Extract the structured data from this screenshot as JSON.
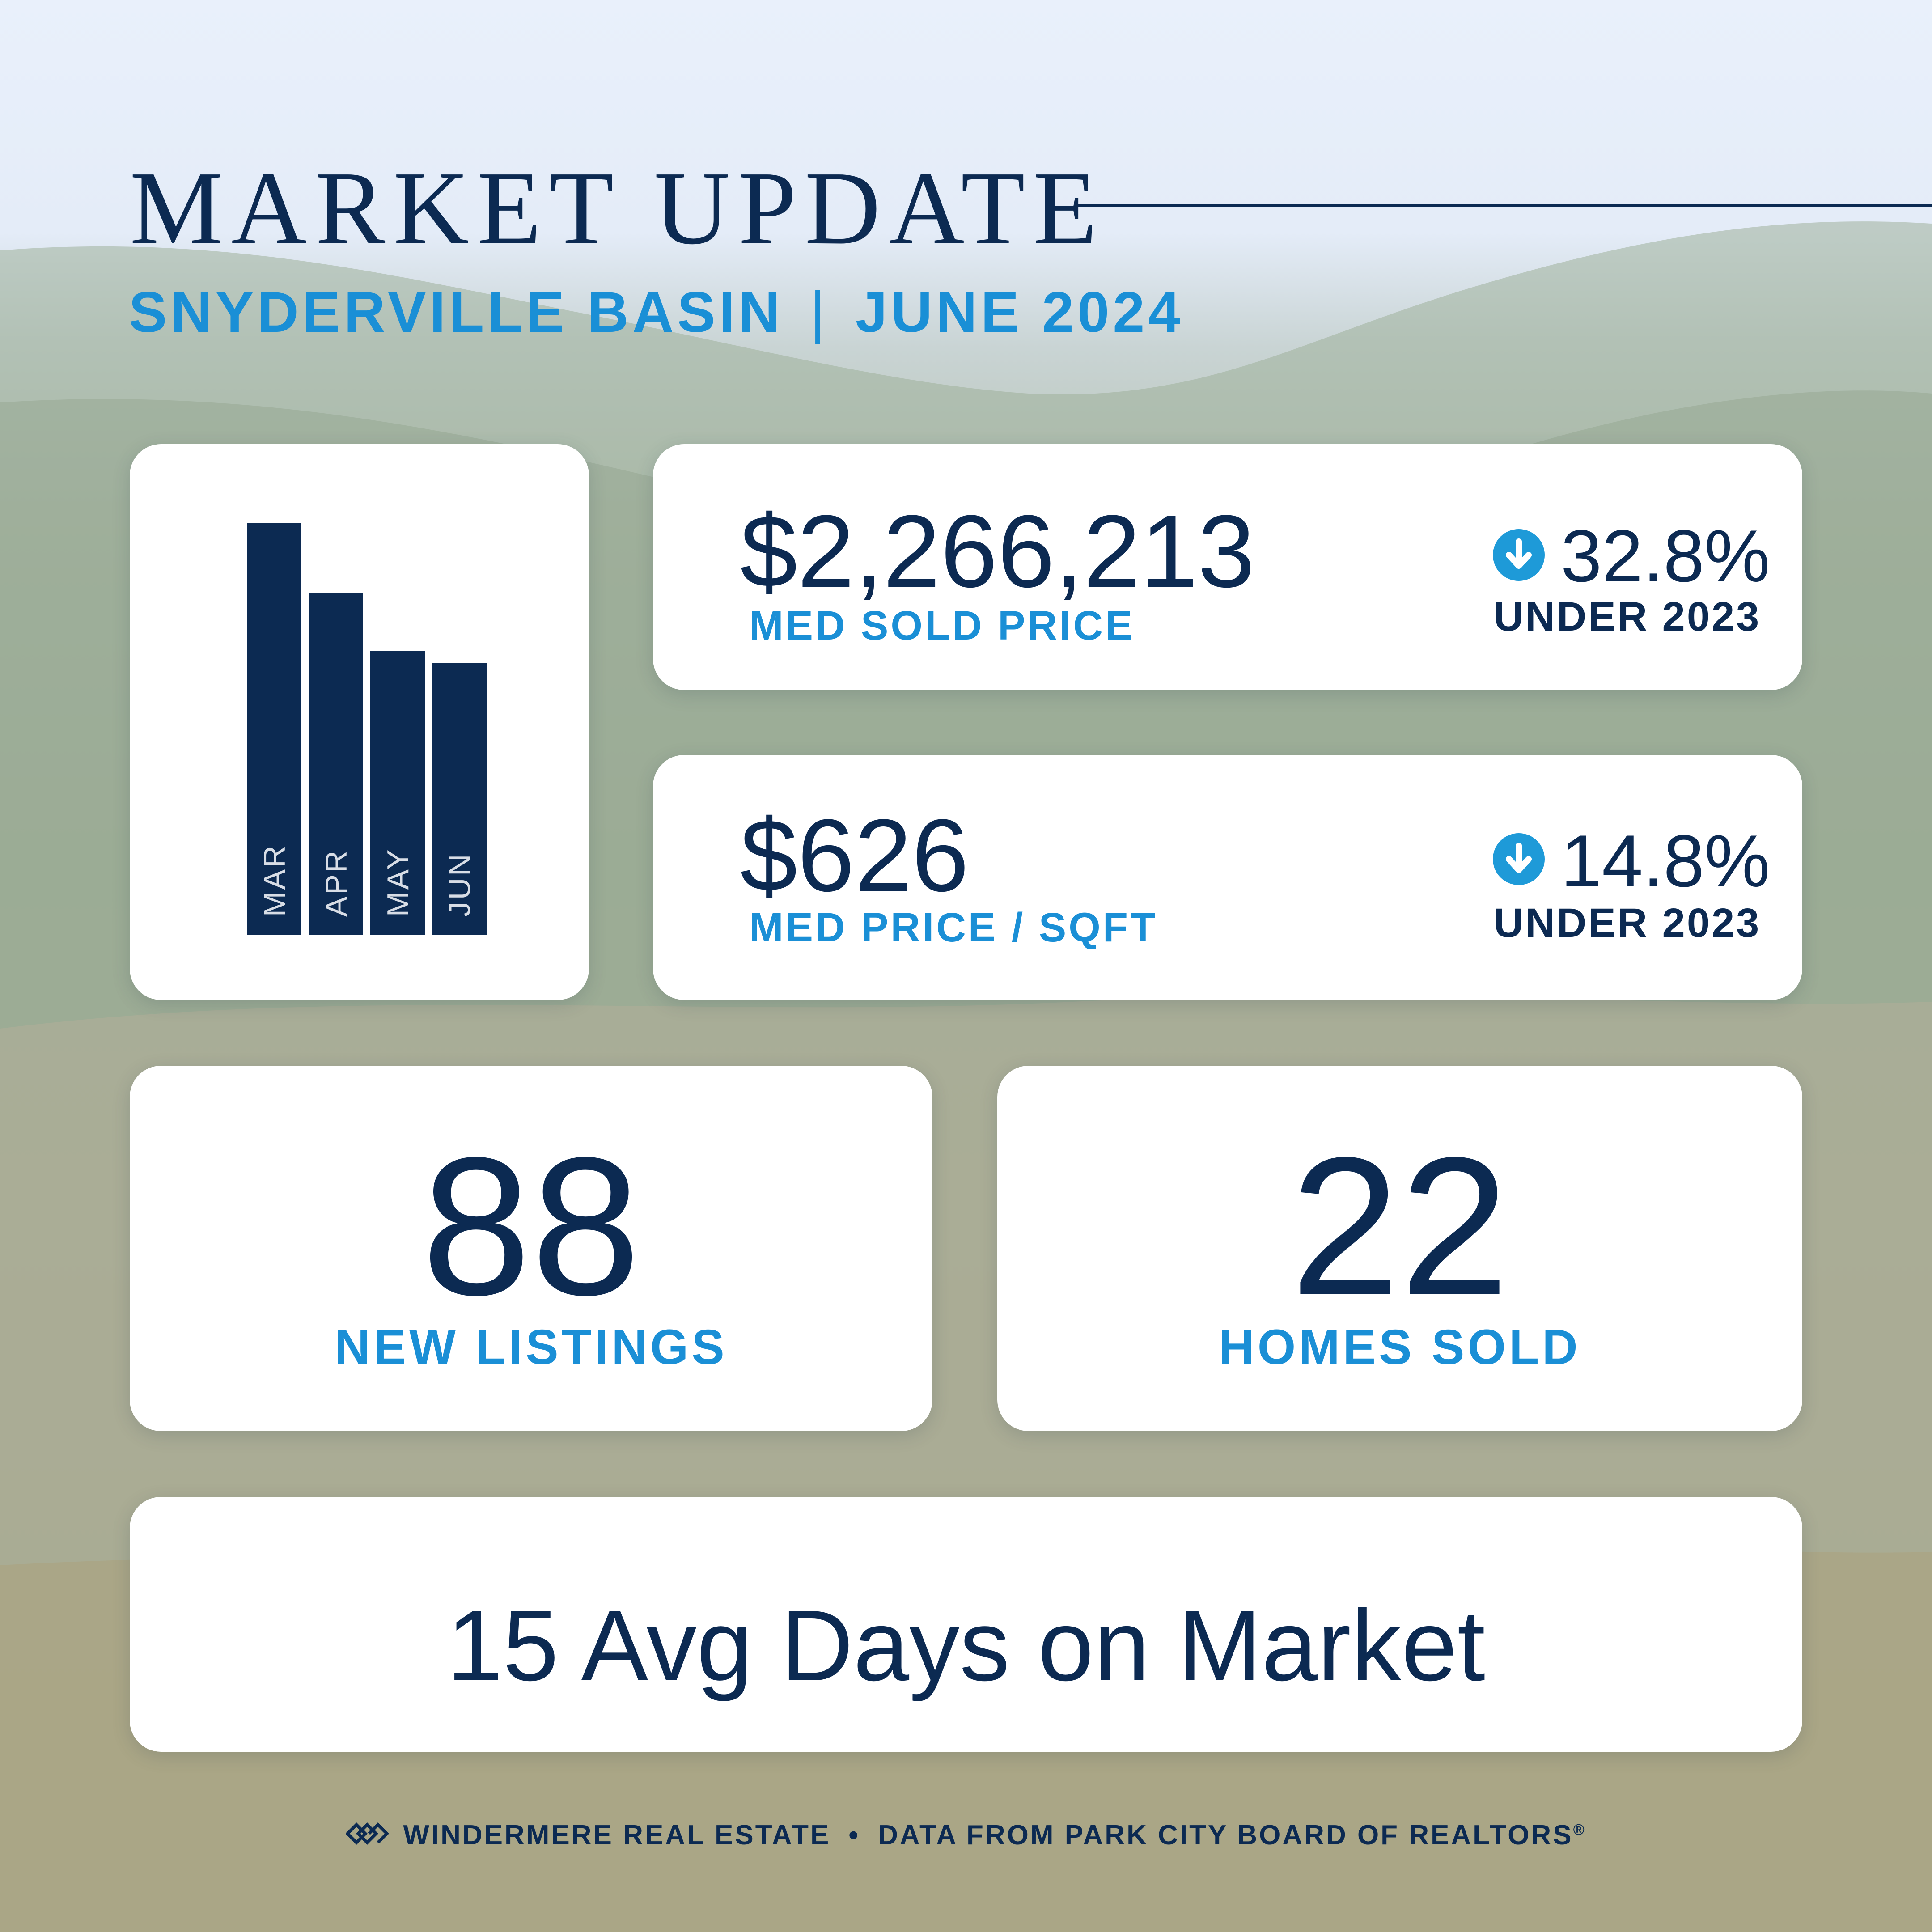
{
  "header": {
    "title": "MARKET UPDATE",
    "area": "SNYDERVILLE BASIN",
    "separator": "|",
    "period": "JUNE 2024"
  },
  "chart_data": {
    "type": "bar",
    "categories": [
      "MAR",
      "APR",
      "MAY",
      "JUN"
    ],
    "values": [
      100,
      83,
      69,
      66
    ],
    "title": "",
    "xlabel": "",
    "ylabel": ""
  },
  "stats": {
    "med_sold_price": {
      "value": "$2,266,213",
      "label": "MED SOLD PRICE",
      "change": "32.8%",
      "change_label": "UNDER 2023",
      "direction": "down"
    },
    "med_price_sqft": {
      "value": "$626",
      "label": "MED PRICE / SQFT",
      "change": "14.8%",
      "change_label": "UNDER 2023",
      "direction": "down"
    },
    "new_listings": {
      "value": "88",
      "label": "NEW LISTINGS"
    },
    "homes_sold": {
      "value": "22",
      "label": "HOMES SOLD"
    },
    "days_on_market": {
      "text": "15 Avg Days on Market"
    }
  },
  "footer": {
    "brand": "WINDERMERE REAL ESTATE",
    "bullet": "•",
    "source": "DATA FROM PARK CITY BOARD OF REALTORS",
    "registered": "®"
  },
  "colors": {
    "navy": "#0c2a52",
    "accent_blue": "#1a8fd6",
    "arrow_blue": "#1e9ad8",
    "card": "#ffffff"
  },
  "icons": {
    "trend": "arrow-down-circle-icon",
    "logo": "windermere-logo-icon"
  }
}
